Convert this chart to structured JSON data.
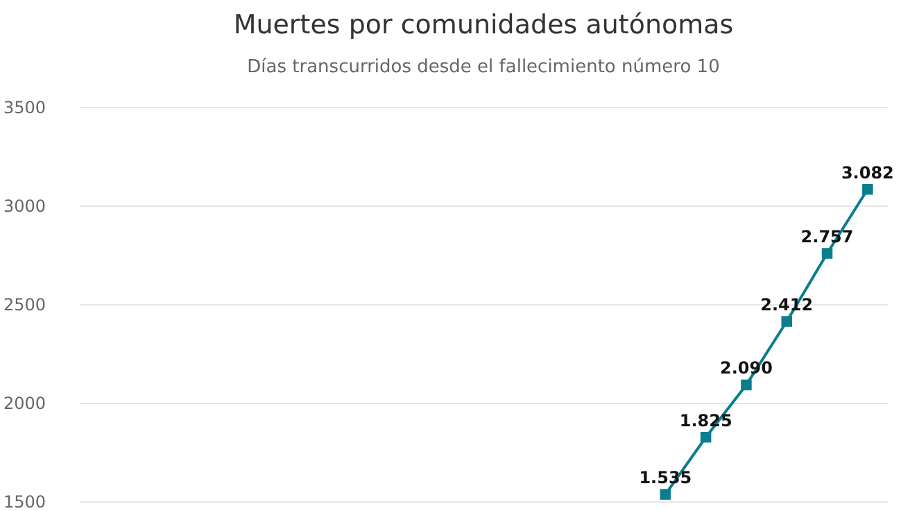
{
  "chart_data": {
    "type": "line",
    "title": "Muertes por comunidades autónomas",
    "subtitle": "Días transcurridos desde el fallecimiento número 10",
    "categories": [
      null,
      null,
      null,
      null,
      null,
      null,
      null,
      null,
      null,
      null,
      null,
      null,
      null,
      null,
      null,
      null,
      null,
      null,
      null,
      null
    ],
    "series": [
      {
        "color": "#0b7d8e",
        "values": [
          null,
          null,
          null,
          null,
          null,
          null,
          null,
          null,
          null,
          null,
          null,
          null,
          null,
          null,
          1535,
          1825,
          2090,
          2412,
          2757,
          3082
        ],
        "value_labels": [
          null,
          null,
          null,
          null,
          null,
          null,
          null,
          null,
          null,
          null,
          null,
          null,
          null,
          null,
          "1.535",
          "1.825",
          "2.090",
          "2.412",
          "2.757",
          "3.082"
        ]
      }
    ],
    "ylim": [
      1500,
      3500
    ],
    "yticks": [
      1500,
      2000,
      2500,
      3000,
      3500
    ],
    "grid": "y",
    "tick_labels": "y",
    "marker": "square",
    "line_style": "solid"
  }
}
